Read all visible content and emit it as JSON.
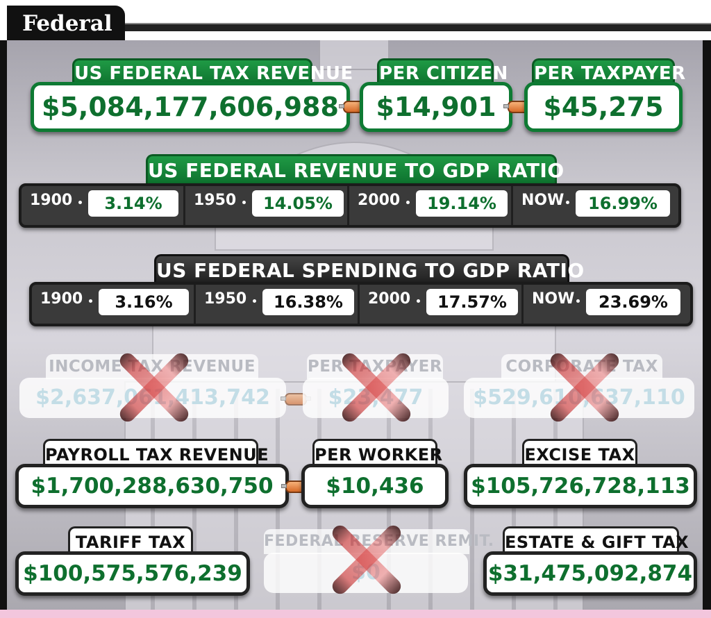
{
  "section_title": "Federal",
  "top": {
    "revenue": {
      "label": "US FEDERAL TAX REVENUE",
      "value": "$5,084,177,606,988"
    },
    "per_citizen": {
      "label": "PER CITIZEN",
      "value": "$14,901"
    },
    "per_taxpayer": {
      "label": "PER TAXPAYER",
      "value": "$45,275"
    }
  },
  "revenue_gdp": {
    "title": "US FEDERAL REVENUE TO GDP RATIO",
    "items": [
      {
        "year": "1900",
        "value": "3.14%"
      },
      {
        "year": "1950",
        "value": "14.05%"
      },
      {
        "year": "2000",
        "value": "19.14%"
      },
      {
        "year": "NOW",
        "value": "16.99%"
      }
    ]
  },
  "spending_gdp": {
    "title": "US FEDERAL SPENDING TO GDP RATIO",
    "items": [
      {
        "year": "1900",
        "value": "3.16%"
      },
      {
        "year": "1950",
        "value": "16.38%"
      },
      {
        "year": "2000",
        "value": "17.57%"
      },
      {
        "year": "NOW",
        "value": "23.69%"
      }
    ]
  },
  "disabled": {
    "income": {
      "label": "INCOME TAX REVENUE",
      "value": "$2,637,061,413,742"
    },
    "per_taxpayer": {
      "label": "PER TAXPAYER",
      "value": "$23,477"
    },
    "corporate": {
      "label": "CORPORATE TAX",
      "value": "$529,610,637,110"
    },
    "fed_reserve": {
      "label": "FEDERAL RESERVE REMIT.",
      "value": "$0"
    }
  },
  "payroll": {
    "label": "PAYROLL TAX REVENUE",
    "value": "$1,700,288,630,750"
  },
  "per_worker": {
    "label": "PER WORKER",
    "value": "$10,436"
  },
  "excise": {
    "label": "EXCISE TAX",
    "value": "$105,726,728,113"
  },
  "tariff": {
    "label": "TARIFF TAX",
    "value": "$100,575,576,239"
  },
  "estate": {
    "label": "ESTATE & GIFT TAX",
    "value": "$31,475,092,874"
  },
  "colors": {
    "green": "#0e7a33",
    "dark": "#222222",
    "disabled_text": "#c3dde6"
  }
}
